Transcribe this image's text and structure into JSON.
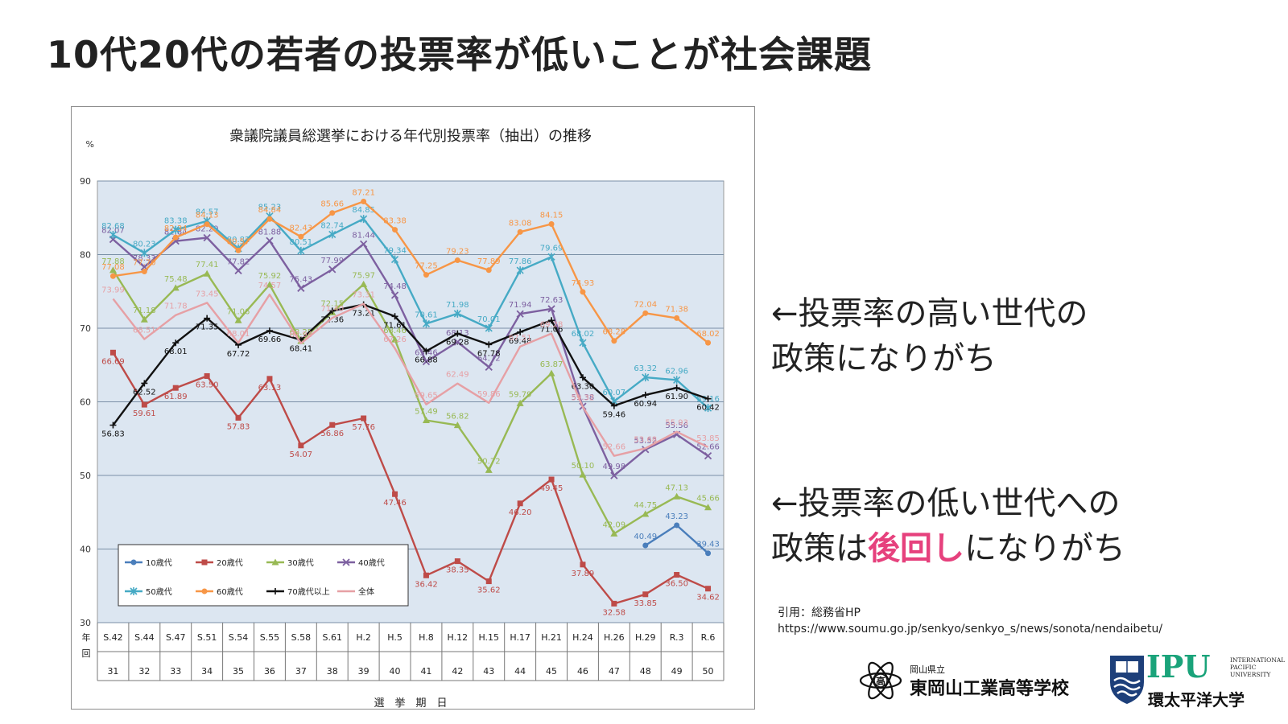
{
  "slide": {
    "title": "10代20代の若者の投票率が低いことが社会課題",
    "side_text_1_line1": "←投票率の高い世代の",
    "side_text_1_line2": "政策になりがち",
    "side_text_2_line1": "←投票率の低い世代への",
    "side_text_2_pre": "政策は",
    "side_text_2_highlight": "後回し",
    "side_text_2_post": "になりがち",
    "citation_label": "引用：総務省HP",
    "citation_url": "https://www.soumu.go.jp/senkyo/senkyo_s/news/sonota/nendaibetu/",
    "logo_school_prefecture": "岡山県立",
    "logo_school_name": "東岡山工業高等学校",
    "logo_univ_abbr": "IPU",
    "logo_univ_en": "INTERNATIONAL PACIFIC UNIVERSITY",
    "logo_univ_jp": "環太平洋大学",
    "highlight_color": "#e6417d"
  },
  "chart_data": {
    "type": "line",
    "title": "衆議院議員総選挙における年代別投票率（抽出）の推移",
    "ylabel": "%",
    "xlabel": "選　挙　期　日",
    "x_row_label": "年回",
    "ylim": [
      30,
      90
    ],
    "yticks": [
      30,
      40,
      50,
      60,
      70,
      80,
      90
    ],
    "grid": true,
    "plot_background": "#dce6f1",
    "legend_position": "bottom-left",
    "categories": [
      "S.42",
      "S.44",
      "S.47",
      "S.51",
      "S.54",
      "S.55",
      "S.58",
      "S.61",
      "H.2",
      "H.5",
      "H.8",
      "H.12",
      "H.15",
      "H.17",
      "H.21",
      "H.24",
      "H.26",
      "H.29",
      "R.3",
      "R.6"
    ],
    "category_numbers": [
      "31",
      "32",
      "33",
      "34",
      "35",
      "36",
      "37",
      "38",
      "39",
      "40",
      "41",
      "42",
      "43",
      "44",
      "45",
      "46",
      "47",
      "48",
      "49",
      "50"
    ],
    "series": [
      {
        "name": "10歳代",
        "color": "#4a7ebb",
        "marker": "circle",
        "values": [
          null,
          null,
          null,
          null,
          null,
          null,
          null,
          null,
          null,
          null,
          null,
          null,
          null,
          null,
          null,
          null,
          null,
          40.49,
          43.23,
          39.43
        ]
      },
      {
        "name": "20歳代",
        "color": "#be4b48",
        "marker": "square",
        "values": [
          66.69,
          59.61,
          61.89,
          63.5,
          57.83,
          63.13,
          54.07,
          56.86,
          57.76,
          47.46,
          36.42,
          38.35,
          35.62,
          46.2,
          49.45,
          37.89,
          32.58,
          33.85,
          36.5,
          34.62
        ]
      },
      {
        "name": "30歳代",
        "color": "#98b954",
        "marker": "triangle",
        "values": [
          77.88,
          71.18,
          75.48,
          77.41,
          71.06,
          75.92,
          68.25,
          72.15,
          75.97,
          68.46,
          57.49,
          56.82,
          50.72,
          59.79,
          63.87,
          50.1,
          42.09,
          44.75,
          47.13,
          45.66
        ]
      },
      {
        "name": "40歳代",
        "color": "#7d60a0",
        "marker": "x",
        "values": [
          82.07,
          78.33,
          81.84,
          82.29,
          77.82,
          81.88,
          75.43,
          77.99,
          81.44,
          74.48,
          65.46,
          68.13,
          64.72,
          71.94,
          72.63,
          59.38,
          49.98,
          53.52,
          55.56,
          52.66
        ]
      },
      {
        "name": "50歳代",
        "color": "#46aac5",
        "marker": "star",
        "values": [
          82.68,
          80.23,
          83.38,
          84.57,
          80.82,
          85.23,
          80.51,
          82.74,
          84.85,
          79.34,
          70.61,
          71.98,
          70.01,
          77.86,
          79.69,
          68.02,
          60.07,
          63.32,
          62.96,
          59.16
        ]
      },
      {
        "name": "60歳代",
        "color": "#f79646",
        "marker": "circle",
        "values": [
          77.08,
          77.7,
          82.34,
          84.13,
          80.57,
          84.84,
          82.43,
          85.66,
          87.21,
          83.38,
          77.25,
          79.23,
          77.89,
          83.08,
          84.15,
          74.93,
          68.28,
          72.04,
          71.38,
          68.02
        ]
      },
      {
        "name": "70歳代以上",
        "color": "#111111",
        "marker": "plus",
        "values": [
          56.83,
          62.52,
          68.01,
          71.35,
          67.72,
          69.66,
          68.41,
          72.36,
          73.21,
          71.61,
          66.88,
          69.28,
          67.78,
          69.48,
          71.06,
          63.3,
          59.46,
          60.94,
          61.9,
          60.42
        ]
      },
      {
        "name": "全体",
        "color": "#e6a0a5",
        "marker": "none",
        "values": [
          73.99,
          68.51,
          71.78,
          73.45,
          68.01,
          74.57,
          67.94,
          71.4,
          73.31,
          67.26,
          59.65,
          62.49,
          59.86,
          67.51,
          69.28,
          59.32,
          52.66,
          53.68,
          55.93,
          53.85
        ]
      }
    ]
  }
}
